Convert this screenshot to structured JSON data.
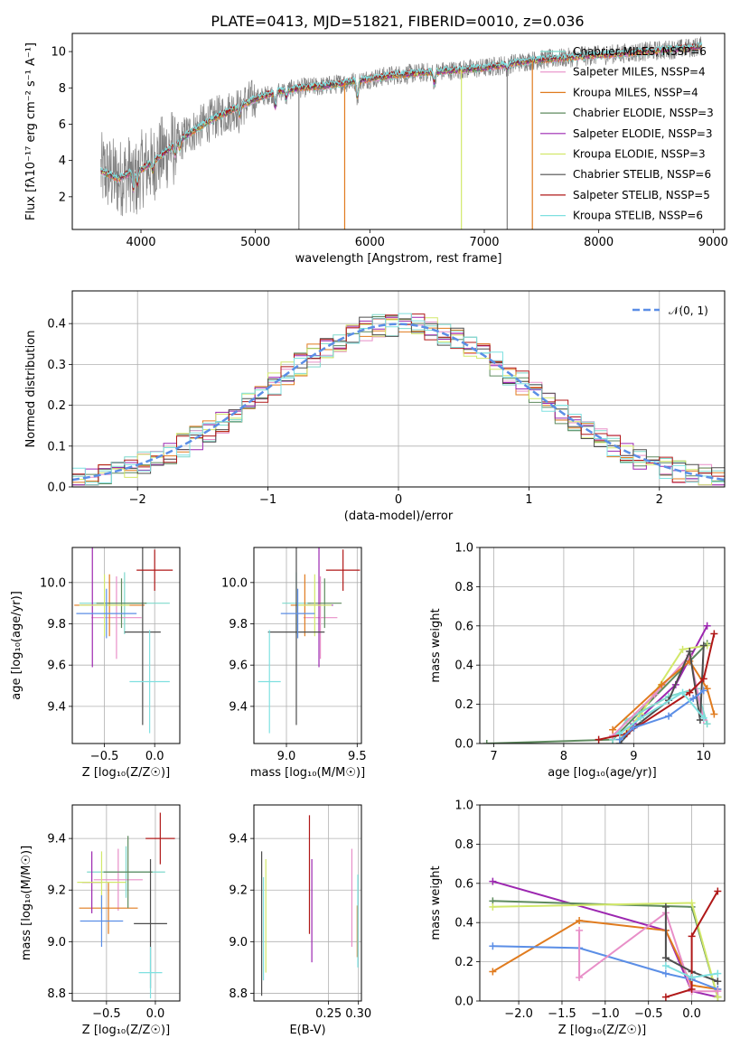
{
  "title": "PLATE=0413, MJD=51821, FIBERID=0010, z=0.036",
  "colors": {
    "chabrier_miles": "#7fd9cc",
    "salpeter_miles": "#e88fc8",
    "kroupa_miles": "#e07b1e",
    "chabrier_elodie": "#5e8a5e",
    "salpeter_elodie": "#9c27b0",
    "kroupa_elodie": "#d2e86a",
    "chabrier_stelib": "#4d4d4d",
    "salpeter_stelib": "#b01818",
    "kroupa_stelib": "#7fe0e0",
    "normal": "#5b8ee6",
    "data": "#808080"
  },
  "chart_data": [
    {
      "id": "spectrum",
      "type": "line",
      "title": "PLATE=0413, MJD=51821, FIBERID=0010, z=0.036",
      "xlabel": "wavelength [Angstrom, rest frame]",
      "ylabel": "Flux [fλ10⁻¹⁷ erg cm⁻² s⁻¹ A⁻¹]",
      "xlim": [
        3400,
        9100
      ],
      "ylim": [
        0.2,
        11.0
      ],
      "xticks": [
        "4000",
        "5000",
        "6000",
        "7000",
        "8000",
        "9000"
      ],
      "yticks": [
        "2",
        "4",
        "6",
        "8",
        "10"
      ],
      "legend": [
        "Chabrier MILES, NSSP=6",
        "Salpeter MILES, NSSP=4",
        "Kroupa MILES, NSSP=4",
        "Chabrier ELODIE, NSSP=3",
        "Salpeter ELODIE, NSSP=3",
        "Kroupa ELODIE, NSSP=3",
        "Chabrier STELIB, NSSP=6",
        "Salpeter STELIB, NSSP=5",
        "Kroupa STELIB, NSSP=6"
      ],
      "legend_position": "right",
      "continuum": {
        "x": [
          3650,
          3700,
          3800,
          3900,
          4000,
          4100,
          4200,
          4300,
          4400,
          4500,
          4600,
          4800,
          5000,
          5200,
          5400,
          5600,
          5800,
          6000,
          6200,
          6400,
          6600,
          6800,
          7000,
          7200,
          7400,
          7600,
          7800,
          8000,
          8200,
          8400,
          8600,
          8800,
          8900
        ],
        "y": [
          3.4,
          3.3,
          3.0,
          3.3,
          3.5,
          3.9,
          4.4,
          4.9,
          5.4,
          5.8,
          6.2,
          6.8,
          7.4,
          7.8,
          8.0,
          8.1,
          8.3,
          8.5,
          8.7,
          8.8,
          8.9,
          9.0,
          9.1,
          9.3,
          9.5,
          9.6,
          9.7,
          9.8,
          9.9,
          10.0,
          10.1,
          10.2,
          10.3
        ]
      }
    },
    {
      "id": "residuals",
      "type": "bar",
      "xlabel": "(data-model)/error",
      "ylabel": "Normed distribution",
      "xlim": [
        -2.5,
        2.5
      ],
      "ylim": [
        0,
        0.48
      ],
      "xticks": [
        "−2",
        "−1",
        "0",
        "1",
        "2"
      ],
      "yticks": [
        "0.0",
        "0.1",
        "0.2",
        "0.3",
        "0.4"
      ],
      "legend": [
        "𝒩(0, 1)"
      ],
      "legend_position": "top-right",
      "bin_width": 0.1,
      "bin_start": -2.5
    },
    {
      "id": "age_vs_Z",
      "type": "scatter",
      "xlabel": "Z [log₁₀(Z/Z☉)]",
      "ylabel": "age  [log₁₀(age/yr)]",
      "xlim": [
        -0.82,
        0.25
      ],
      "ylim": [
        9.22,
        10.17
      ],
      "xticks": [
        "−0.5",
        "0.0"
      ],
      "yticks": [
        "9.4",
        "9.6",
        "9.8",
        "10.0"
      ],
      "points": [
        {
          "key": "chabrier_miles",
          "x": -0.3,
          "y": 9.9,
          "xerr": 0.45,
          "yerr": 0.15
        },
        {
          "key": "salpeter_miles",
          "x": -0.38,
          "y": 9.83,
          "xerr": 0.25,
          "yerr": 0.2
        },
        {
          "key": "kroupa_miles",
          "x": -0.45,
          "y": 9.89,
          "xerr": 0.35,
          "yerr": 0.15
        },
        {
          "key": "chabrier_elodie",
          "x": -0.33,
          "y": 9.9,
          "xerr": 0.25,
          "yerr": 0.12
        },
        {
          "key": "salpeter_elodie",
          "x": -0.62,
          "y": 9.89,
          "xerr": 0.12,
          "yerr": 0.3
        },
        {
          "key": "kroupa_elodie",
          "x": -0.5,
          "y": 9.89,
          "xerr": 0.25,
          "yerr": 0.15
        },
        {
          "key": "chabrier_stelib",
          "x": -0.12,
          "y": 9.76,
          "xerr": 0.18,
          "yerr": 0.45
        },
        {
          "key": "salpeter_stelib",
          "x": 0.0,
          "y": 10.06,
          "xerr": 0.18,
          "yerr": 0.1
        },
        {
          "key": "kroupa_stelib",
          "x": -0.05,
          "y": 9.52,
          "xerr": 0.2,
          "yerr": 0.25
        },
        {
          "key": "normal",
          "x": -0.48,
          "y": 9.85,
          "xerr": 0.3,
          "yerr": 0.12
        }
      ]
    },
    {
      "id": "age_vs_mass",
      "type": "scatter",
      "xlabel": "mass [log₁₀(M/M☉)]",
      "ylabel": "",
      "xlim": [
        8.77,
        9.53
      ],
      "ylim": [
        9.22,
        10.17
      ],
      "xticks": [
        "9.0",
        "9.5"
      ],
      "yticks": [
        "9.4",
        "9.6",
        "9.8",
        "10.0"
      ],
      "points": [
        {
          "key": "chabrier_miles",
          "x": 9.07,
          "y": 9.9,
          "xerr": 0.1,
          "yerr": 0.15
        },
        {
          "key": "salpeter_miles",
          "x": 9.24,
          "y": 9.83,
          "xerr": 0.12,
          "yerr": 0.2
        },
        {
          "key": "kroupa_miles",
          "x": 9.13,
          "y": 9.89,
          "xerr": 0.1,
          "yerr": 0.15
        },
        {
          "key": "chabrier_elodie",
          "x": 9.27,
          "y": 9.9,
          "xerr": 0.12,
          "yerr": 0.12
        },
        {
          "key": "salpeter_elodie",
          "x": 9.23,
          "y": 9.89,
          "xerr": 0.1,
          "yerr": 0.3
        },
        {
          "key": "kroupa_elodie",
          "x": 9.2,
          "y": 9.89,
          "xerr": 0.12,
          "yerr": 0.15
        },
        {
          "key": "chabrier_stelib",
          "x": 9.07,
          "y": 9.76,
          "xerr": 0.2,
          "yerr": 0.45
        },
        {
          "key": "salpeter_stelib",
          "x": 9.4,
          "y": 10.06,
          "xerr": 0.12,
          "yerr": 0.1
        },
        {
          "key": "kroupa_stelib",
          "x": 8.88,
          "y": 9.52,
          "xerr": 0.08,
          "yerr": 0.25
        },
        {
          "key": "normal",
          "x": 9.08,
          "y": 9.85,
          "xerr": 0.12,
          "yerr": 0.12
        }
      ]
    },
    {
      "id": "weight_vs_age",
      "type": "line",
      "xlabel": "age  [log₁₀(age/yr)]",
      "ylabel": "mass weight",
      "xlim": [
        6.8,
        10.3
      ],
      "ylim": [
        0.0,
        1.0
      ],
      "xticks": [
        "7",
        "8",
        "9",
        "10"
      ],
      "yticks": [
        "0.0",
        "0.2",
        "0.4",
        "0.6",
        "0.8",
        "1.0"
      ],
      "series": [
        {
          "key": "chabrier_elodie",
          "x": [
            6.9,
            8.7,
            10.05
          ],
          "y": [
            0.0,
            0.02,
            0.51
          ]
        },
        {
          "key": "salpeter_elodie",
          "x": [
            8.8,
            9.0,
            9.6,
            10.05
          ],
          "y": [
            0.02,
            0.1,
            0.3,
            0.6
          ]
        },
        {
          "key": "kroupa_elodie",
          "x": [
            8.8,
            9.1,
            9.7,
            10.05
          ],
          "y": [
            0.02,
            0.15,
            0.48,
            0.5
          ]
        },
        {
          "key": "chabrier_miles",
          "x": [
            8.7,
            8.9,
            9.5,
            9.9,
            10.05
          ],
          "y": [
            0.02,
            0.12,
            0.24,
            0.28,
            0.1
          ]
        },
        {
          "key": "salpeter_miles",
          "x": [
            8.7,
            9.3,
            9.8,
            10.0
          ],
          "y": [
            0.04,
            0.25,
            0.45,
            0.12
          ]
        },
        {
          "key": "kroupa_miles",
          "x": [
            8.7,
            9.4,
            9.8,
            10.05,
            10.15
          ],
          "y": [
            0.07,
            0.3,
            0.42,
            0.28,
            0.15
          ]
        },
        {
          "key": "chabrier_stelib",
          "x": [
            8.8,
            9.0,
            9.5,
            9.8,
            9.95,
            10.0
          ],
          "y": [
            0.0,
            0.08,
            0.22,
            0.47,
            0.12,
            0.5
          ]
        },
        {
          "key": "salpeter_stelib",
          "x": [
            8.5,
            8.9,
            9.8,
            10.0,
            10.15
          ],
          "y": [
            0.02,
            0.05,
            0.26,
            0.33,
            0.56
          ]
        },
        {
          "key": "normal",
          "x": [
            8.8,
            9.0,
            9.5,
            9.85,
            10.0
          ],
          "y": [
            0.02,
            0.08,
            0.14,
            0.23,
            0.27
          ]
        },
        {
          "key": "kroupa_stelib",
          "x": [
            8.8,
            9.1,
            9.7,
            10.0
          ],
          "y": [
            0.05,
            0.13,
            0.26,
            0.13
          ]
        }
      ]
    },
    {
      "id": "mass_vs_Z",
      "type": "scatter",
      "xlabel": "Z [log₁₀(Z/Z☉)]",
      "ylabel": "mass [log₁₀(M/M☉)]",
      "xlim": [
        -0.85,
        0.25
      ],
      "ylim": [
        8.77,
        9.53
      ],
      "xticks": [
        "−0.5",
        "0.0"
      ],
      "yticks": [
        "8.8",
        "9.0",
        "9.2",
        "9.4"
      ],
      "points": [
        {
          "key": "chabrier_miles",
          "x": -0.3,
          "y": 9.27,
          "xerr": 0.4,
          "yerr": 0.1
        },
        {
          "key": "salpeter_miles",
          "x": -0.38,
          "y": 9.24,
          "xerr": 0.25,
          "yerr": 0.12
        },
        {
          "key": "kroupa_miles",
          "x": -0.48,
          "y": 9.13,
          "xerr": 0.3,
          "yerr": 0.1
        },
        {
          "key": "chabrier_elodie",
          "x": -0.28,
          "y": 9.27,
          "xerr": 0.25,
          "yerr": 0.14
        },
        {
          "key": "salpeter_elodie",
          "x": -0.65,
          "y": 9.23,
          "xerr": 0.1,
          "yerr": 0.12
        },
        {
          "key": "kroupa_elodie",
          "x": -0.55,
          "y": 9.23,
          "xerr": 0.25,
          "yerr": 0.12
        },
        {
          "key": "chabrier_stelib",
          "x": -0.05,
          "y": 9.07,
          "xerr": 0.17,
          "yerr": 0.25
        },
        {
          "key": "salpeter_stelib",
          "x": 0.05,
          "y": 9.4,
          "xerr": 0.15,
          "yerr": 0.1
        },
        {
          "key": "kroupa_stelib",
          "x": -0.05,
          "y": 8.88,
          "xerr": 0.12,
          "yerr": 0.1
        },
        {
          "key": "normal",
          "x": -0.55,
          "y": 9.08,
          "xerr": 0.22,
          "yerr": 0.1
        }
      ]
    },
    {
      "id": "mass_vs_EBV",
      "type": "scatter",
      "xlabel": "E(B-V)",
      "ylabel": "",
      "xlim": [
        0.125,
        0.305
      ],
      "ylim": [
        8.77,
        9.53
      ],
      "xticks": [
        "0.25",
        "0.30"
      ],
      "yticks": [
        "8.8",
        "9.0",
        "9.2",
        "9.4"
      ],
      "points": [
        {
          "key": "chabrier_stelib",
          "x": 0.138,
          "y": 9.07,
          "xerr": 0.0,
          "yerr": 0.28
        },
        {
          "key": "kroupa_stelib",
          "x": 0.141,
          "y": 9.05,
          "xerr": 0.0,
          "yerr": 0.2
        },
        {
          "key": "kroupa_elodie",
          "x": 0.145,
          "y": 9.1,
          "xerr": 0.0,
          "yerr": 0.22
        },
        {
          "key": "salpeter_stelib",
          "x": 0.218,
          "y": 9.26,
          "xerr": 0.0,
          "yerr": 0.23
        },
        {
          "key": "salpeter_elodie",
          "x": 0.222,
          "y": 9.12,
          "xerr": 0.0,
          "yerr": 0.2
        },
        {
          "key": "salpeter_miles",
          "x": 0.289,
          "y": 9.17,
          "xerr": 0.0,
          "yerr": 0.19
        },
        {
          "key": "kroupa_miles",
          "x": 0.298,
          "y": 9.04,
          "xerr": 0.0,
          "yerr": 0.1
        },
        {
          "key": "kroupa_stelib",
          "x": 0.299,
          "y": 9.08,
          "xerr": 0.0,
          "yerr": 0.18
        }
      ]
    },
    {
      "id": "weight_vs_Z",
      "type": "line",
      "xlabel": "Z [log₁₀(Z/Z☉)]",
      "ylabel": "mass weight",
      "xlim": [
        -2.45,
        0.38
      ],
      "ylim": [
        0.0,
        1.0
      ],
      "xticks": [
        "−2.0",
        "−1.5",
        "−1.0",
        "−0.5",
        "0.0"
      ],
      "yticks": [
        "0.0",
        "0.2",
        "0.4",
        "0.6",
        "0.8",
        "1.0"
      ],
      "series": [
        {
          "key": "salpeter_elodie",
          "x": [
            -2.3,
            -0.3,
            0.0,
            0.3
          ],
          "y": [
            0.61,
            0.36,
            0.05,
            0.02
          ]
        },
        {
          "key": "chabrier_elodie",
          "x": [
            -2.3,
            0.0,
            0.3
          ],
          "y": [
            0.51,
            0.48,
            0.02
          ]
        },
        {
          "key": "kroupa_elodie",
          "x": [
            -2.3,
            0.0,
            0.3
          ],
          "y": [
            0.48,
            0.5,
            0.02
          ]
        },
        {
          "key": "kroupa_miles",
          "x": [
            -2.3,
            -1.3,
            -0.3,
            0.0,
            0.3
          ],
          "y": [
            0.15,
            0.41,
            0.36,
            0.08,
            0.06
          ]
        },
        {
          "key": "normal",
          "x": [
            -2.3,
            -1.3,
            -0.3,
            0.0,
            0.3
          ],
          "y": [
            0.28,
            0.27,
            0.14,
            0.11,
            0.06
          ]
        },
        {
          "key": "salpeter_miles",
          "x": [
            -1.3,
            -1.3,
            -0.3,
            0.0,
            0.3
          ],
          "y": [
            0.36,
            0.12,
            0.45,
            0.05,
            0.05
          ]
        },
        {
          "key": "chabrier_stelib",
          "x": [
            -0.3,
            -0.3,
            0.0,
            0.3
          ],
          "y": [
            0.48,
            0.22,
            0.15,
            0.1
          ]
        },
        {
          "key": "salpeter_stelib",
          "x": [
            -0.3,
            0.0,
            0.0,
            0.3
          ],
          "y": [
            0.02,
            0.06,
            0.33,
            0.56
          ]
        },
        {
          "key": "kroupa_stelib",
          "x": [
            -0.3,
            0.0,
            0.3
          ],
          "y": [
            0.18,
            0.12,
            0.14
          ]
        }
      ]
    }
  ]
}
